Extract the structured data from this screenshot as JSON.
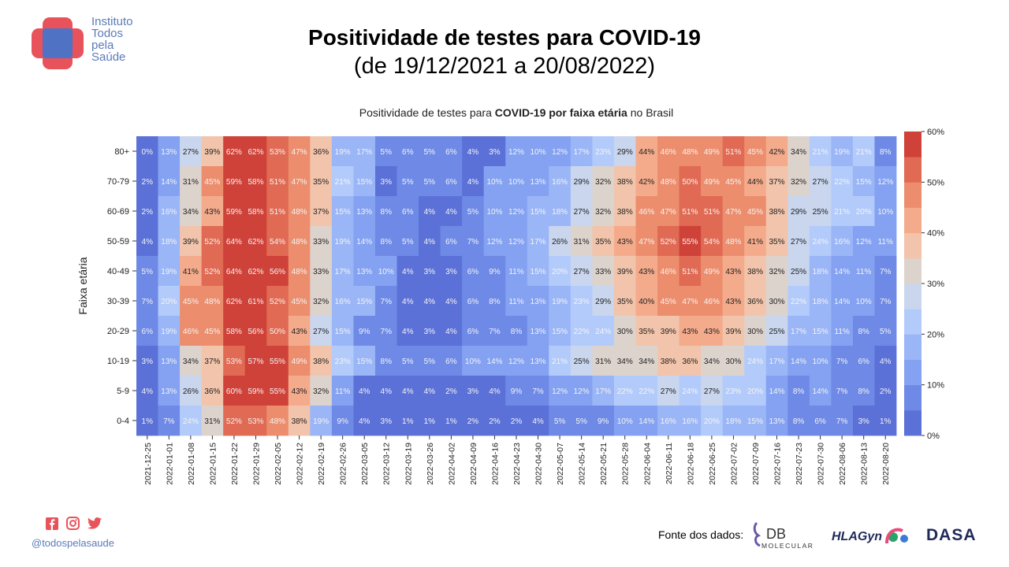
{
  "header": {
    "org_lines": [
      "Instituto",
      "Todos",
      "pela",
      "Saúde"
    ],
    "title": "Positividade de testes para COVID-19",
    "subtitle": "(de 19/12/2021 a 20/08/2022)"
  },
  "colors": {
    "brand_red": "#e8525a",
    "brand_blue": "#4f72c4",
    "footer_text": "#5b7bb8",
    "icon_red": "#e8525a"
  },
  "footer": {
    "social_icons": [
      "facebook-icon",
      "instagram-icon",
      "twitter-icon"
    ],
    "handle": "@todospelasaude",
    "sources_label": "Fonte dos dados:",
    "sources": [
      {
        "name": "DB",
        "sub": "MOLECULAR"
      },
      {
        "name": "HLAGyn"
      },
      {
        "name": "DASA"
      }
    ]
  },
  "chart_data": {
    "type": "heatmap",
    "title_parts": [
      {
        "text": "Positividade de testes para ",
        "bold": false
      },
      {
        "text": "COVID-19 por faixa etária",
        "bold": true
      },
      {
        "text": " no Brasil",
        "bold": false
      }
    ],
    "ylabel": "Faixa etária",
    "xlabel": "",
    "x": [
      "2021-12-25",
      "2022-01-01",
      "2022-01-08",
      "2022-01-15",
      "2022-01-22",
      "2022-01-29",
      "2022-02-05",
      "2022-02-12",
      "2022-02-19",
      "2022-02-26",
      "2022-03-05",
      "2022-03-12",
      "2022-03-19",
      "2022-03-26",
      "2022-04-02",
      "2022-04-09",
      "2022-04-16",
      "2022-04-23",
      "2022-04-30",
      "2022-05-07",
      "2022-05-14",
      "2022-05-21",
      "2022-05-28",
      "2022-06-04",
      "2022-06-11",
      "2022-06-18",
      "2022-06-25",
      "2022-07-02",
      "2022-07-09",
      "2022-07-16",
      "2022-07-23",
      "2022-07-30",
      "2022-08-06",
      "2022-08-13",
      "2022-08-20"
    ],
    "y": [
      "80+",
      "70-79",
      "60-69",
      "50-59",
      "40-49",
      "30-39",
      "20-29",
      "10-19",
      "5-9",
      "0-4"
    ],
    "values": [
      [
        0,
        13,
        27,
        39,
        62,
        62,
        53,
        47,
        36,
        19,
        17,
        5,
        6,
        5,
        6,
        4,
        3,
        12,
        10,
        12,
        17,
        23,
        29,
        44,
        46,
        48,
        49,
        51,
        45,
        42,
        34,
        21,
        19,
        21,
        8
      ],
      [
        2,
        14,
        31,
        45,
        59,
        58,
        51,
        47,
        35,
        21,
        15,
        3,
        5,
        5,
        6,
        4,
        10,
        10,
        13,
        16,
        29,
        32,
        38,
        42,
        48,
        50,
        49,
        45,
        44,
        37,
        32,
        27,
        22,
        15,
        12
      ],
      [
        2,
        16,
        34,
        43,
        59,
        58,
        51,
        48,
        37,
        15,
        13,
        8,
        6,
        4,
        4,
        5,
        10,
        12,
        15,
        18,
        27,
        32,
        38,
        46,
        47,
        51,
        51,
        47,
        45,
        38,
        29,
        25,
        21,
        20,
        10
      ],
      [
        4,
        18,
        39,
        52,
        64,
        62,
        54,
        48,
        33,
        19,
        14,
        8,
        5,
        4,
        6,
        7,
        12,
        12,
        17,
        26,
        31,
        35,
        43,
        47,
        52,
        55,
        54,
        48,
        41,
        35,
        27,
        24,
        16,
        12,
        11
      ],
      [
        5,
        19,
        41,
        52,
        64,
        62,
        56,
        48,
        33,
        17,
        13,
        10,
        4,
        3,
        3,
        6,
        9,
        11,
        15,
        20,
        27,
        33,
        39,
        43,
        46,
        51,
        49,
        43,
        38,
        32,
        25,
        18,
        14,
        11,
        7
      ],
      [
        7,
        20,
        45,
        48,
        62,
        61,
        52,
        45,
        32,
        16,
        15,
        7,
        4,
        4,
        4,
        6,
        8,
        11,
        13,
        19,
        23,
        29,
        35,
        40,
        45,
        47,
        46,
        43,
        36,
        30,
        22,
        18,
        14,
        10,
        7
      ],
      [
        6,
        19,
        46,
        45,
        58,
        56,
        50,
        43,
        27,
        15,
        9,
        7,
        4,
        3,
        4,
        6,
        7,
        8,
        13,
        15,
        22,
        24,
        30,
        35,
        39,
        43,
        43,
        39,
        30,
        25,
        17,
        15,
        11,
        8,
        5
      ],
      [
        3,
        13,
        34,
        37,
        53,
        57,
        55,
        49,
        38,
        23,
        15,
        8,
        5,
        5,
        6,
        10,
        14,
        12,
        13,
        21,
        25,
        31,
        34,
        34,
        38,
        36,
        34,
        30,
        24,
        17,
        14,
        10,
        7,
        6,
        4
      ],
      [
        4,
        13,
        26,
        36,
        60,
        59,
        55,
        43,
        32,
        11,
        4,
        4,
        4,
        4,
        2,
        3,
        4,
        9,
        7,
        12,
        12,
        17,
        22,
        22,
        27,
        24,
        27,
        23,
        20,
        14,
        8,
        14,
        7,
        8,
        2
      ],
      [
        1,
        7,
        24,
        31,
        52,
        53,
        48,
        38,
        19,
        9,
        4,
        3,
        1,
        1,
        1,
        2,
        2,
        2,
        4,
        5,
        5,
        9,
        10,
        14,
        16,
        16,
        20,
        18,
        15,
        13,
        8,
        6,
        7,
        3,
        1
      ]
    ],
    "value_suffix": "%",
    "colorbar": {
      "min": 0,
      "max": 60,
      "ticks": [
        "0%",
        "10%",
        "20%",
        "30%",
        "40%",
        "50%",
        "60%"
      ],
      "palette": [
        "#5b71d8",
        "#6e8ae6",
        "#84a2f1",
        "#9bb6f7",
        "#b3cbfb",
        "#c9d6ee",
        "#ddd3cd",
        "#f2c4ab",
        "#f4ab8c",
        "#ec8e6d",
        "#e06a53",
        "#cf4239"
      ]
    },
    "grid": false,
    "legend": "colorbar right"
  }
}
